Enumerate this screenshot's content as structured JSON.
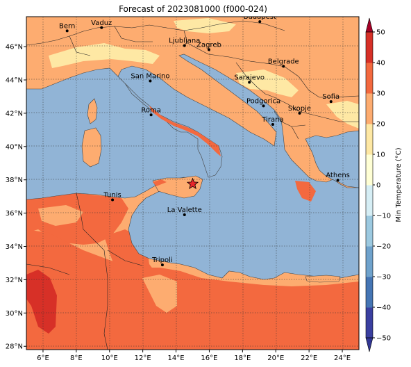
{
  "title": "Forecast of 2023081000 (f000-024)",
  "map": {
    "lon_range": [
      5,
      25
    ],
    "lat_range": [
      27.8,
      47.8
    ],
    "lon_ticks": [
      "6°E",
      "8°E",
      "10°E",
      "12°E",
      "14°E",
      "16°E",
      "18°E",
      "20°E",
      "22°E",
      "24°E"
    ],
    "lat_ticks": [
      "28°N",
      "30°N",
      "32°N",
      "34°N",
      "36°N",
      "38°N",
      "40°N",
      "42°N",
      "44°N",
      "46°N"
    ],
    "grid": true,
    "sea_color": "#91b4d6",
    "land_colors": {
      "warm_10_20": "#fee8a4",
      "warm_20_30": "#fdac70",
      "warm_30_40": "#f3693f",
      "hot_40_50": "#d73027"
    },
    "marker": {
      "name": "star",
      "color": "#e8262a",
      "lon": 15.0,
      "lat": 37.75
    }
  },
  "cities": [
    {
      "name": "Bern",
      "lon": 7.45,
      "lat": 46.95
    },
    {
      "name": "Vaduz",
      "lon": 9.52,
      "lat": 47.14
    },
    {
      "name": "Budapest",
      "lon": 19.04,
      "lat": 47.5
    },
    {
      "name": "Ljubljana",
      "lon": 14.51,
      "lat": 46.06
    },
    {
      "name": "Zagreb",
      "lon": 15.98,
      "lat": 45.82
    },
    {
      "name": "Belgrade",
      "lon": 20.46,
      "lat": 44.82
    },
    {
      "name": "San Marino",
      "lon": 12.45,
      "lat": 43.94
    },
    {
      "name": "Sarajevo",
      "lon": 18.41,
      "lat": 43.86
    },
    {
      "name": "Sofia",
      "lon": 23.32,
      "lat": 42.7
    },
    {
      "name": "Roma",
      "lon": 12.5,
      "lat": 41.9
    },
    {
      "name": "Podgorica",
      "lon": 19.26,
      "lat": 42.44
    },
    {
      "name": "Skopje",
      "lon": 21.43,
      "lat": 42.0
    },
    {
      "name": "Tirana",
      "lon": 19.82,
      "lat": 41.33
    },
    {
      "name": "Athens",
      "lon": 23.73,
      "lat": 37.98
    },
    {
      "name": "Tunis",
      "lon": 10.18,
      "lat": 36.8
    },
    {
      "name": "La Valette",
      "lon": 14.51,
      "lat": 35.9
    },
    {
      "name": "Tripoli",
      "lon": 13.18,
      "lat": 32.89
    }
  ],
  "colorbar": {
    "label": "Min Temperature (°C)",
    "ticks": [
      "50",
      "40",
      "30",
      "20",
      "10",
      "0",
      "−10",
      "−20",
      "−30",
      "−40",
      "−50"
    ],
    "colors": [
      "#313695",
      "#4575b4",
      "#74add1",
      "#abd9e9",
      "#e0f3f8",
      "#ffffbf",
      "#fee090",
      "#fdae61",
      "#f46d43",
      "#d73027",
      "#a50026"
    ],
    "min": -50,
    "max": 50
  }
}
